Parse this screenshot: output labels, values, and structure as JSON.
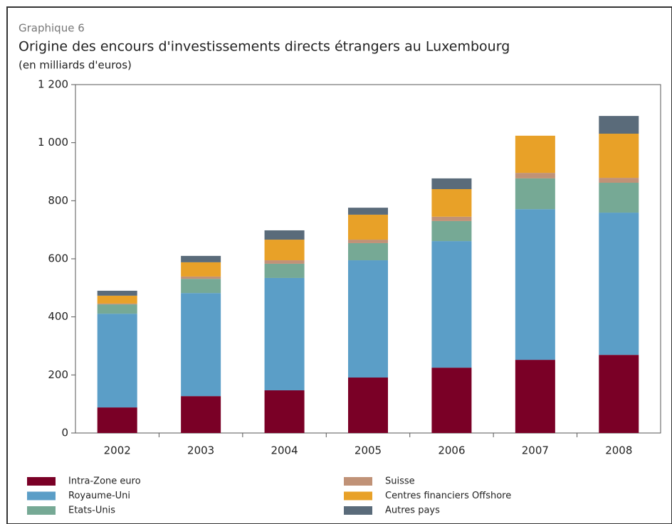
{
  "chart_data": {
    "type": "stacked_bar",
    "label": "Graphique 6",
    "title": "Origine des encours d'investissements directs étrangers au Luxembourg",
    "subtitle": "(en milliards d'euros)",
    "categories": [
      "2002",
      "2003",
      "2004",
      "2005",
      "2006",
      "2007",
      "2008"
    ],
    "series": [
      {
        "name": "Intra-Zone euro",
        "color": "#7a0026",
        "values": [
          88,
          127,
          147,
          191,
          225,
          252,
          269
        ]
      },
      {
        "name": "Royaume-Uni",
        "color": "#5b9ec7",
        "values": [
          323,
          355,
          387,
          404,
          436,
          519,
          490
        ]
      },
      {
        "name": "Etats-Unis",
        "color": "#76a995",
        "values": [
          32,
          49,
          49,
          59,
          69,
          106,
          103
        ]
      },
      {
        "name": "Suisse",
        "color": "#c09277",
        "values": [
          3,
          8,
          12,
          12,
          15,
          19,
          17
        ]
      },
      {
        "name": "Centres financiers Offshore",
        "color": "#e8a128",
        "values": [
          27,
          49,
          71,
          86,
          95,
          128,
          152
        ]
      },
      {
        "name": "Autres pays",
        "color": "#5a6b7a",
        "values": [
          17,
          22,
          32,
          24,
          37,
          0,
          61
        ]
      }
    ],
    "ylim": [
      0,
      1200
    ],
    "yticks": [
      0,
      200,
      400,
      600,
      800,
      {
        "value": 1000,
        "label": "1 000"
      },
      {
        "value": 1200,
        "label": "1 200"
      }
    ],
    "grid": false
  }
}
